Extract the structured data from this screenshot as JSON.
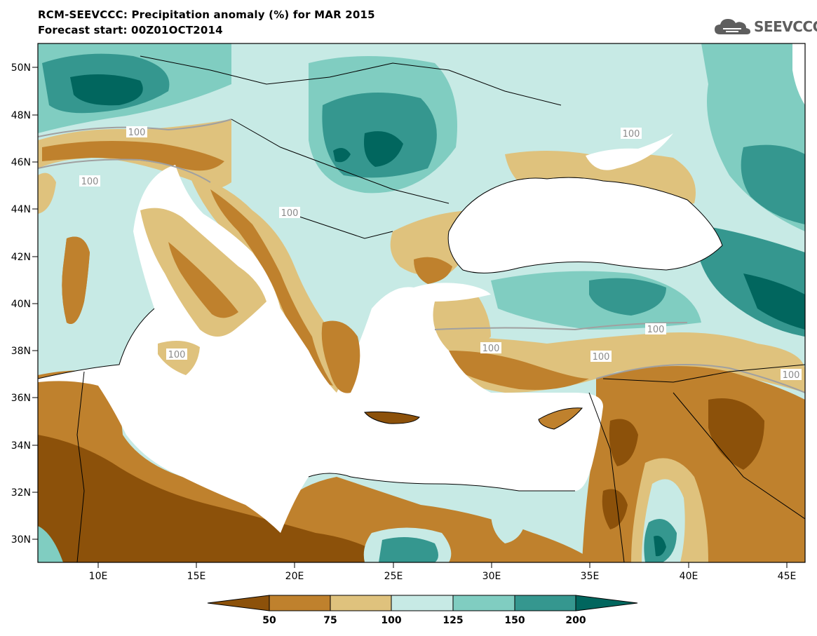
{
  "header": {
    "title": "RCM-SEEVCCC: Precipitation anomaly (%) for MAR 2015",
    "subtitle": "Forecast start: 00Z01OCT2014"
  },
  "logo": {
    "text": "SEEVCCC",
    "icon": "cloud-logo-icon"
  },
  "map": {
    "lat_labels": [
      "50N",
      "48N",
      "46N",
      "44N",
      "42N",
      "40N",
      "38N",
      "36N",
      "34N",
      "32N",
      "30N"
    ],
    "lon_labels": [
      "10E",
      "15E",
      "20E",
      "25E",
      "30E",
      "35E",
      "40E",
      "45E"
    ],
    "contour_labels": [
      "100",
      "100",
      "100",
      "100",
      "100",
      "100",
      "100",
      "100",
      "100"
    ],
    "colors": {
      "very_dry": "#8c510a",
      "dry": "#bf812d",
      "slightly_dry": "#dfc27d",
      "slightly_wet": "#c7eae5",
      "wet": "#80cdc1",
      "very_wet": "#35978f",
      "extreme_wet": "#01665e",
      "sea": "#ffffff",
      "contour": "#a0a0a0"
    }
  },
  "colorbar": {
    "ticks": [
      "50",
      "75",
      "100",
      "125",
      "150",
      "200"
    ],
    "colors": [
      "#8c510a",
      "#bf812d",
      "#dfc27d",
      "#c7eae5",
      "#80cdc1",
      "#35978f",
      "#01665e"
    ]
  }
}
